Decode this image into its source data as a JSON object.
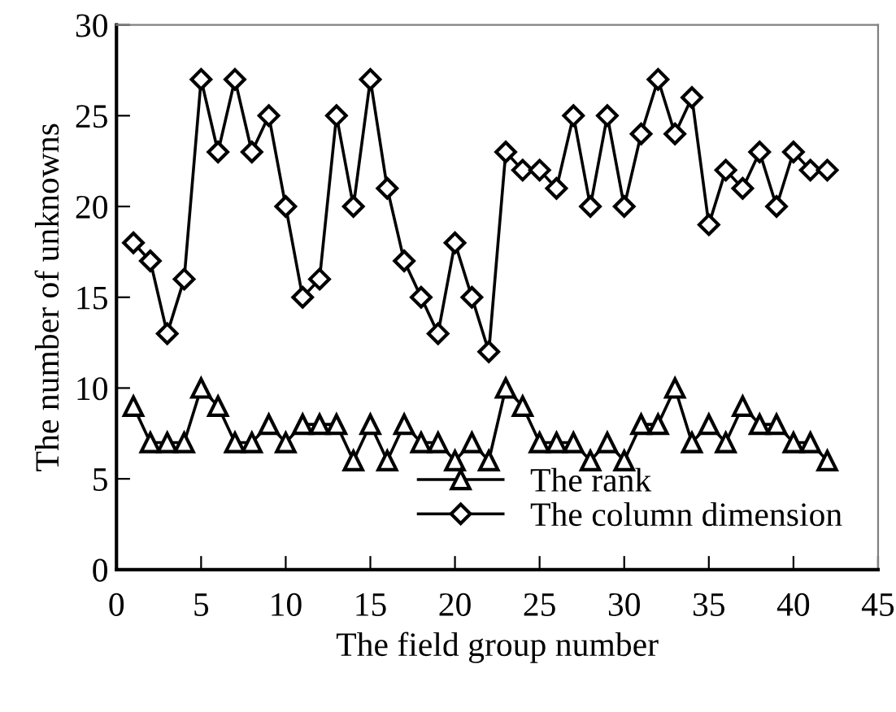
{
  "chart_data": {
    "type": "line",
    "xlabel": "The field group number",
    "ylabel": "The number of unknowns",
    "x": [
      1,
      2,
      3,
      4,
      5,
      6,
      7,
      8,
      9,
      10,
      11,
      12,
      13,
      14,
      15,
      16,
      17,
      18,
      19,
      20,
      21,
      22,
      23,
      24,
      25,
      26,
      27,
      28,
      29,
      30,
      31,
      32,
      33,
      34,
      35,
      36,
      37,
      38,
      39,
      40,
      41,
      42
    ],
    "series": [
      {
        "name": "The rank",
        "color": "#000000",
        "marker": "triangle",
        "values": [
          9,
          7,
          7,
          7,
          10,
          9,
          7,
          7,
          8,
          7,
          8,
          8,
          8,
          6,
          8,
          6,
          8,
          7,
          7,
          6,
          7,
          6,
          10,
          9,
          7,
          7,
          7,
          6,
          7,
          6,
          8,
          8,
          10,
          7,
          8,
          7,
          9,
          8,
          8,
          7,
          7,
          6
        ]
      },
      {
        "name": "The column dimension",
        "color": "#000000",
        "marker": "diamond",
        "values": [
          18,
          17,
          13,
          16,
          27,
          23,
          27,
          23,
          25,
          20,
          15,
          16,
          25,
          20,
          27,
          21,
          17,
          15,
          13,
          18,
          15,
          12,
          23,
          22,
          22,
          21,
          25,
          20,
          25,
          20,
          24,
          27,
          24,
          26,
          19,
          22,
          21,
          23,
          20,
          23,
          22,
          22
        ]
      }
    ],
    "xlim": [
      0,
      45
    ],
    "xticks": [
      0,
      5,
      10,
      15,
      20,
      25,
      30,
      35,
      40,
      45
    ],
    "ylim": [
      0,
      30
    ],
    "yticks": [
      0,
      5,
      10,
      15,
      20,
      25,
      30
    ],
    "grid": false,
    "legend": "bottom right",
    "line_style": "solid"
  }
}
